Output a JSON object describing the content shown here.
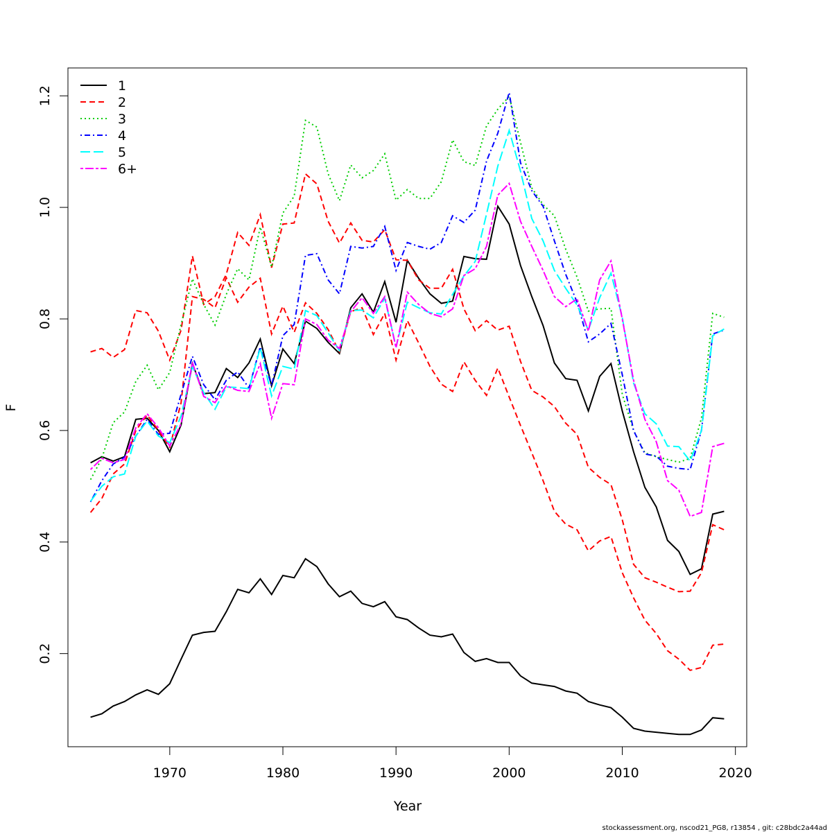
{
  "chart_data": {
    "type": "line",
    "xlabel": "Year",
    "ylabel": "F",
    "xlim": [
      1961,
      2021
    ],
    "ylim": [
      0.033,
      1.25
    ],
    "x_ticks": [
      1970,
      1980,
      1990,
      2000,
      2010,
      2020
    ],
    "y_ticks": [
      0.2,
      0.4,
      0.6,
      0.8,
      1.0,
      1.2
    ],
    "x_tick_labels": [
      "1970",
      "1980",
      "1990",
      "2000",
      "2010",
      "2020"
    ],
    "y_tick_labels": [
      "0.2",
      "0.4",
      "0.6",
      "0.8",
      "1.0",
      "1.2"
    ],
    "grid": false,
    "legend_position": "top-left",
    "x": [
      1963,
      1964,
      1965,
      1966,
      1967,
      1968,
      1969,
      1970,
      1971,
      1972,
      1973,
      1974,
      1975,
      1976,
      1977,
      1978,
      1979,
      1980,
      1981,
      1982,
      1983,
      1984,
      1985,
      1986,
      1987,
      1988,
      1989,
      1990,
      1991,
      1992,
      1993,
      1994,
      1995,
      1996,
      1997,
      1998,
      1999,
      2000,
      2001,
      2002,
      2003,
      2004,
      2005,
      2006,
      2007,
      2008,
      2009,
      2010,
      2011,
      2012,
      2013,
      2014,
      2015,
      2016,
      2017,
      2018,
      2019
    ],
    "series": [
      {
        "name": "1",
        "color": "#000000",
        "dash": "solid",
        "band": "estimate",
        "values": [
          0.542,
          0.553,
          0.545,
          0.553,
          0.62,
          0.622,
          0.6,
          0.562,
          0.61,
          0.72,
          0.666,
          0.668,
          0.711,
          0.695,
          0.721,
          0.764,
          0.68,
          0.746,
          0.72,
          0.796,
          0.783,
          0.758,
          0.738,
          0.82,
          0.845,
          0.812,
          0.867,
          0.794,
          0.905,
          0.873,
          0.845,
          0.828,
          0.832,
          0.912,
          0.908,
          0.907,
          1.002,
          0.97,
          0.896,
          0.84,
          0.788,
          0.721,
          0.693,
          0.69,
          0.635,
          0.697,
          0.72,
          0.635,
          0.562,
          0.498,
          0.463,
          0.403,
          0.383,
          0.342,
          0.352,
          0.45,
          0.455
        ]
      },
      {
        "name": "",
        "color": "#000000",
        "dash": "solid",
        "band": "lower",
        "values": [
          0.086,
          0.092,
          0.106,
          0.114,
          0.126,
          0.135,
          0.127,
          0.146,
          0.19,
          0.233,
          0.238,
          0.24,
          0.275,
          0.315,
          0.309,
          0.334,
          0.306,
          0.34,
          0.336,
          0.37,
          0.356,
          0.325,
          0.302,
          0.312,
          0.29,
          0.284,
          0.293,
          0.266,
          0.261,
          0.246,
          0.233,
          0.23,
          0.235,
          0.202,
          0.186,
          0.191,
          0.184,
          0.184,
          0.16,
          0.147,
          0.144,
          0.141,
          0.133,
          0.129,
          0.114,
          0.108,
          0.103,
          0.086,
          0.066,
          0.061,
          0.059,
          0.057,
          0.055,
          0.055,
          0.063,
          0.085,
          0.083
        ]
      },
      {
        "name": "2",
        "color": "#ff0000",
        "dash": "dashed",
        "band": "estimate",
        "values": [
          0.453,
          0.478,
          0.522,
          0.54,
          0.6,
          0.628,
          0.6,
          0.57,
          0.65,
          0.84,
          0.835,
          0.82,
          0.874,
          0.83,
          0.857,
          0.873,
          0.773,
          0.823,
          0.776,
          0.829,
          0.81,
          0.781,
          0.741,
          0.813,
          0.82,
          0.772,
          0.81,
          0.726,
          0.797,
          0.757,
          0.715,
          0.683,
          0.67,
          0.723,
          0.69,
          0.663,
          0.712,
          0.66,
          0.609,
          0.56,
          0.51,
          0.455,
          0.432,
          0.422,
          0.384,
          0.402,
          0.41,
          0.345,
          0.3,
          0.26,
          0.236,
          0.205,
          0.19,
          0.17,
          0.175,
          0.215,
          0.217
        ]
      },
      {
        "name": "",
        "color": "#ff0000",
        "dash": "dashed",
        "band": "upper",
        "values": [
          0.741,
          0.747,
          0.731,
          0.745,
          0.815,
          0.811,
          0.778,
          0.726,
          0.78,
          0.913,
          0.826,
          0.84,
          0.88,
          0.955,
          0.932,
          0.987,
          0.892,
          0.97,
          0.972,
          1.06,
          1.042,
          0.975,
          0.936,
          0.972,
          0.941,
          0.938,
          0.96,
          0.906,
          0.905,
          0.87,
          0.855,
          0.855,
          0.889,
          0.818,
          0.779,
          0.797,
          0.78,
          0.787,
          0.724,
          0.672,
          0.66,
          0.643,
          0.613,
          0.593,
          0.534,
          0.516,
          0.503,
          0.44,
          0.36,
          0.336,
          0.328,
          0.319,
          0.311,
          0.312,
          0.345,
          0.431,
          0.422
        ]
      },
      {
        "name": "3",
        "color": "#00cd00",
        "dash": "dotted",
        "band": "estimate",
        "values": [
          0.512,
          0.55,
          0.614,
          0.633,
          0.688,
          0.717,
          0.673,
          0.704,
          0.79,
          0.872,
          0.826,
          0.789,
          0.844,
          0.89,
          0.87,
          0.965,
          0.893,
          0.99,
          1.02,
          1.156,
          1.144,
          1.06,
          1.012,
          1.076,
          1.053,
          1.066,
          1.096,
          1.013,
          1.032,
          1.016,
          1.016,
          1.046,
          1.121,
          1.082,
          1.075,
          1.146,
          1.176,
          1.199,
          1.117,
          1.035,
          1.005,
          0.985,
          0.925,
          0.875,
          0.814,
          0.818,
          0.819,
          0.665,
          0.6,
          0.56,
          0.553,
          0.548,
          0.543,
          0.55,
          0.622,
          0.81,
          0.803
        ]
      },
      {
        "name": "4",
        "color": "#0000ff",
        "dash": "dashdot",
        "band": "estimate",
        "values": [
          0.472,
          0.51,
          0.54,
          0.552,
          0.59,
          0.62,
          0.593,
          0.595,
          0.665,
          0.733,
          0.682,
          0.655,
          0.69,
          0.705,
          0.676,
          0.75,
          0.68,
          0.77,
          0.79,
          0.914,
          0.917,
          0.87,
          0.845,
          0.93,
          0.927,
          0.93,
          0.966,
          0.887,
          0.937,
          0.93,
          0.925,
          0.937,
          0.985,
          0.973,
          0.995,
          1.083,
          1.133,
          1.206,
          1.08,
          1.03,
          1.002,
          0.94,
          0.88,
          0.83,
          0.759,
          0.773,
          0.792,
          0.7,
          0.6,
          0.558,
          0.554,
          0.536,
          0.532,
          0.53,
          0.6,
          0.773,
          0.78
        ]
      },
      {
        "name": "5",
        "color": "#00ffff",
        "dash": "longdash",
        "band": "estimate",
        "values": [
          0.473,
          0.5,
          0.517,
          0.522,
          0.59,
          0.617,
          0.59,
          0.578,
          0.626,
          0.715,
          0.668,
          0.638,
          0.678,
          0.677,
          0.675,
          0.748,
          0.662,
          0.715,
          0.71,
          0.815,
          0.806,
          0.775,
          0.743,
          0.815,
          0.816,
          0.802,
          0.837,
          0.75,
          0.83,
          0.82,
          0.811,
          0.809,
          0.844,
          0.877,
          0.903,
          0.988,
          1.074,
          1.138,
          1.065,
          0.98,
          0.94,
          0.887,
          0.855,
          0.825,
          0.78,
          0.838,
          0.882,
          0.803,
          0.685,
          0.63,
          0.612,
          0.572,
          0.571,
          0.545,
          0.6,
          0.77,
          0.782
        ]
      },
      {
        "name": "6+",
        "color": "#ff00ff",
        "dash": "twodash",
        "band": "estimate",
        "values": [
          0.53,
          0.55,
          0.542,
          0.548,
          0.605,
          0.63,
          0.605,
          0.572,
          0.612,
          0.722,
          0.661,
          0.65,
          0.68,
          0.672,
          0.67,
          0.72,
          0.622,
          0.684,
          0.682,
          0.8,
          0.79,
          0.762,
          0.747,
          0.813,
          0.838,
          0.81,
          0.84,
          0.748,
          0.848,
          0.826,
          0.81,
          0.804,
          0.818,
          0.878,
          0.89,
          0.93,
          1.022,
          1.043,
          0.975,
          0.93,
          0.887,
          0.84,
          0.822,
          0.836,
          0.778,
          0.87,
          0.904,
          0.8,
          0.69,
          0.62,
          0.58,
          0.51,
          0.493,
          0.446,
          0.453,
          0.571,
          0.577
        ]
      }
    ]
  },
  "footer": "stockassessment.org, nscod21_PG8, r13854 , git: c28bdc2a44ad"
}
